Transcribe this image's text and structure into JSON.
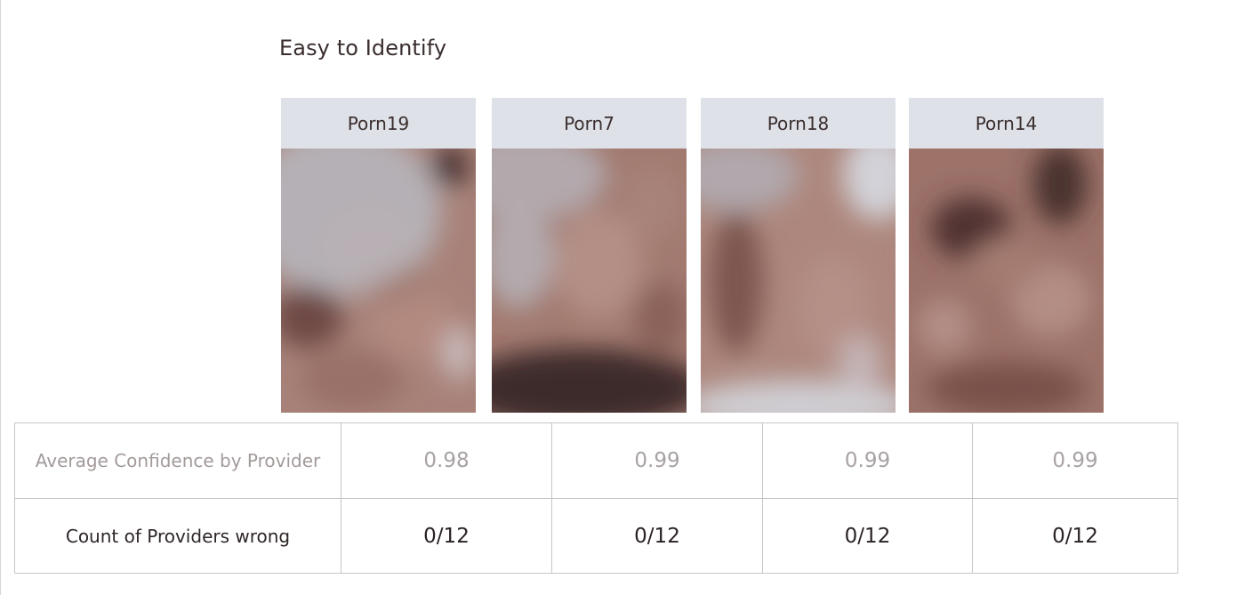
{
  "section_title": "Easy to Identify",
  "cards": [
    {
      "label": "Porn19",
      "image_icon": "blurred-image"
    },
    {
      "label": "Porn7",
      "image_icon": "blurred-image"
    },
    {
      "label": "Porn18",
      "image_icon": "blurred-image"
    },
    {
      "label": "Porn14",
      "image_icon": "blurred-image"
    }
  ],
  "table": {
    "rows": [
      {
        "label": "Average Confidence by Provider",
        "values": [
          "0.98",
          "0.99",
          "0.99",
          "0.99"
        ]
      },
      {
        "label": "Count of Providers wrong",
        "values": [
          "0/12",
          "0/12",
          "0/12",
          "0/12"
        ]
      }
    ]
  },
  "colors": {
    "header_bg": "#dfe1e8",
    "skin_light": "#b88e84",
    "skin_dark": "#3f2a2a",
    "grey_bg": "#b3adb2"
  }
}
